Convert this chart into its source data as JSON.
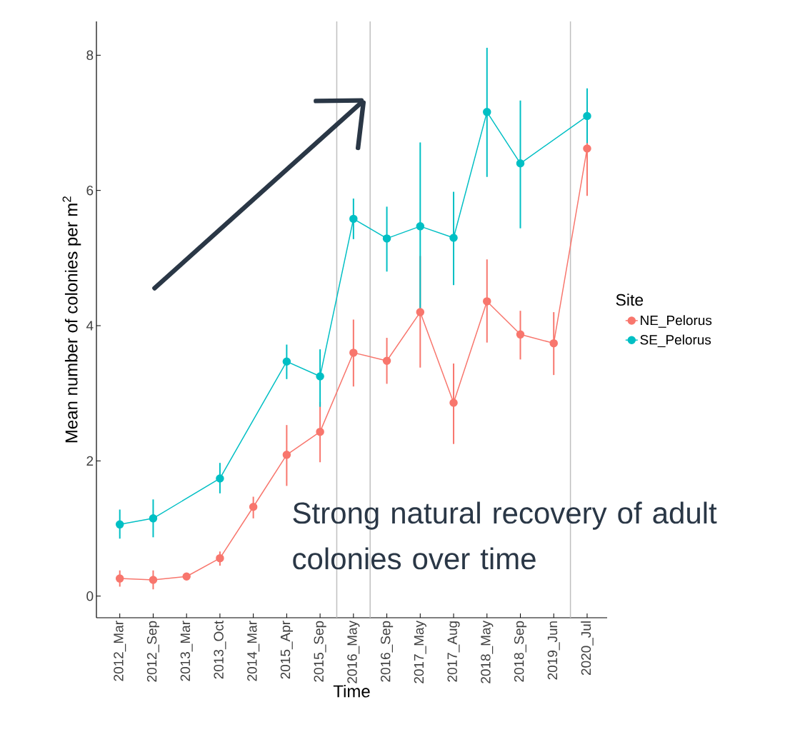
{
  "chart_data": {
    "type": "line",
    "xlabel": "Time",
    "ylabel": "Mean number of colonies per m$^{2}$",
    "legend_title": "Site",
    "categories": [
      "2012_Mar",
      "2012_Sep",
      "2013_Mar",
      "2013_Oct",
      "2014_Mar",
      "2015_Apr",
      "2015_Sep",
      "2016_May",
      "2016_Sep",
      "2017_May",
      "2017_Aug",
      "2018_May",
      "2018_Sep",
      "2019_Jun",
      "2020_Jul"
    ],
    "series": [
      {
        "name": "NE_Pelorus",
        "color": "#f8766d",
        "values": [
          0.26,
          0.24,
          0.29,
          0.56,
          1.32,
          2.09,
          2.43,
          3.6,
          3.48,
          4.2,
          2.86,
          4.36,
          3.87,
          3.74,
          6.62
        ],
        "errors": [
          [
            0.14,
            0.38
          ],
          [
            0.1,
            0.38
          ],
          [
            0.25,
            0.33
          ],
          [
            0.45,
            0.66
          ],
          [
            1.15,
            1.47
          ],
          [
            1.63,
            2.53
          ],
          [
            1.98,
            2.87
          ],
          [
            3.1,
            4.09
          ],
          [
            3.14,
            3.82
          ],
          [
            3.38,
            5.03
          ],
          [
            2.25,
            3.44
          ],
          [
            3.75,
            4.98
          ],
          [
            3.5,
            4.22
          ],
          [
            3.27,
            4.2
          ],
          [
            5.92,
            7.33
          ]
        ]
      },
      {
        "name": "SE_Pelorus",
        "color": "#00bfc4",
        "values": [
          1.06,
          1.15,
          null,
          1.74,
          null,
          3.47,
          3.25,
          5.58,
          5.29,
          5.47,
          5.3,
          7.16,
          6.4,
          null,
          7.1
        ],
        "errors": [
          [
            0.85,
            1.28
          ],
          [
            0.87,
            1.43
          ],
          null,
          [
            1.52,
            1.97
          ],
          null,
          [
            3.21,
            3.72
          ],
          [
            2.8,
            3.65
          ],
          [
            5.28,
            5.88
          ],
          [
            4.8,
            5.76
          ],
          [
            4.25,
            6.71
          ],
          [
            4.6,
            5.98
          ],
          [
            6.2,
            8.11
          ],
          [
            5.44,
            7.33
          ],
          null,
          [
            6.7,
            7.51
          ]
        ]
      }
    ],
    "ylim": [
      -0.32,
      8.5
    ],
    "yticks": [
      0,
      2,
      4,
      6,
      8
    ],
    "annotations": [
      "Strong natural recovery of adult colonies over time"
    ],
    "grid": false,
    "legend": "right",
    "marker": "circle",
    "line_style": "solid"
  }
}
